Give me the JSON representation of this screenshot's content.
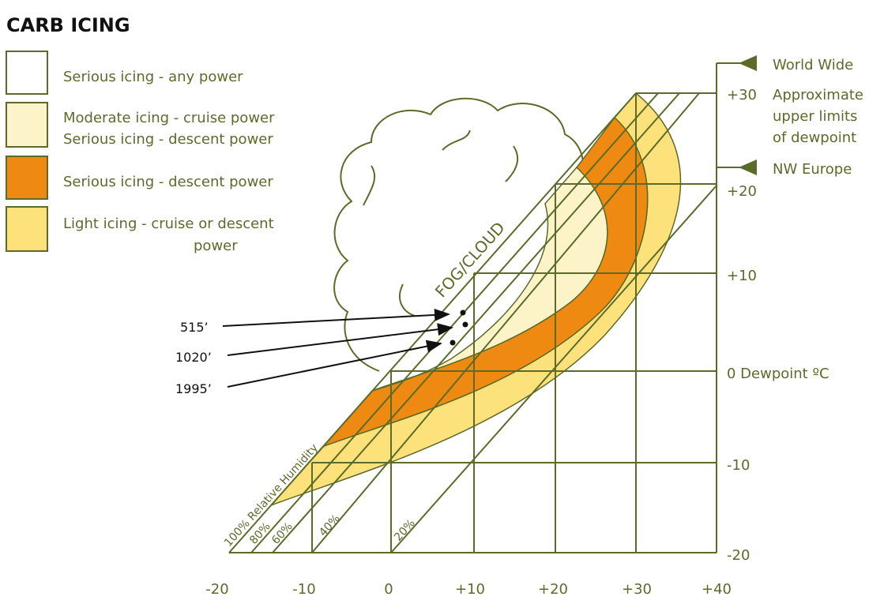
{
  "title": "CARB ICING",
  "legend": [
    {
      "lines": [
        "Serious icing - any power"
      ]
    },
    {
      "lines": [
        "Moderate icing - cruise power",
        "Serious icing - descent power"
      ]
    },
    {
      "lines": [
        "Serious icing - descent power"
      ]
    },
    {
      "lines": [
        "Light icing - cruise or descent",
        "power"
      ]
    }
  ],
  "x_axis": {
    "labels": [
      "-20",
      "-10",
      "0",
      "+10",
      "+20",
      "+30",
      "+40"
    ]
  },
  "y_axis": {
    "labels": [
      "-20",
      "-10",
      "0 Dewpoint ºC",
      "+10",
      "+20",
      "+30"
    ]
  },
  "humidity_labels": [
    "100% Relative Humidity",
    "80%",
    "60%",
    "40%",
    "20%"
  ],
  "fog_label": "FOG/CLOUD",
  "altitudes": [
    "515’",
    "1020’",
    "1995’"
  ],
  "limits": {
    "world_wide": "World Wide",
    "note": [
      "Approximate",
      "upper limits",
      "of dewpoint"
    ],
    "nw_europe": "NW Europe"
  }
}
